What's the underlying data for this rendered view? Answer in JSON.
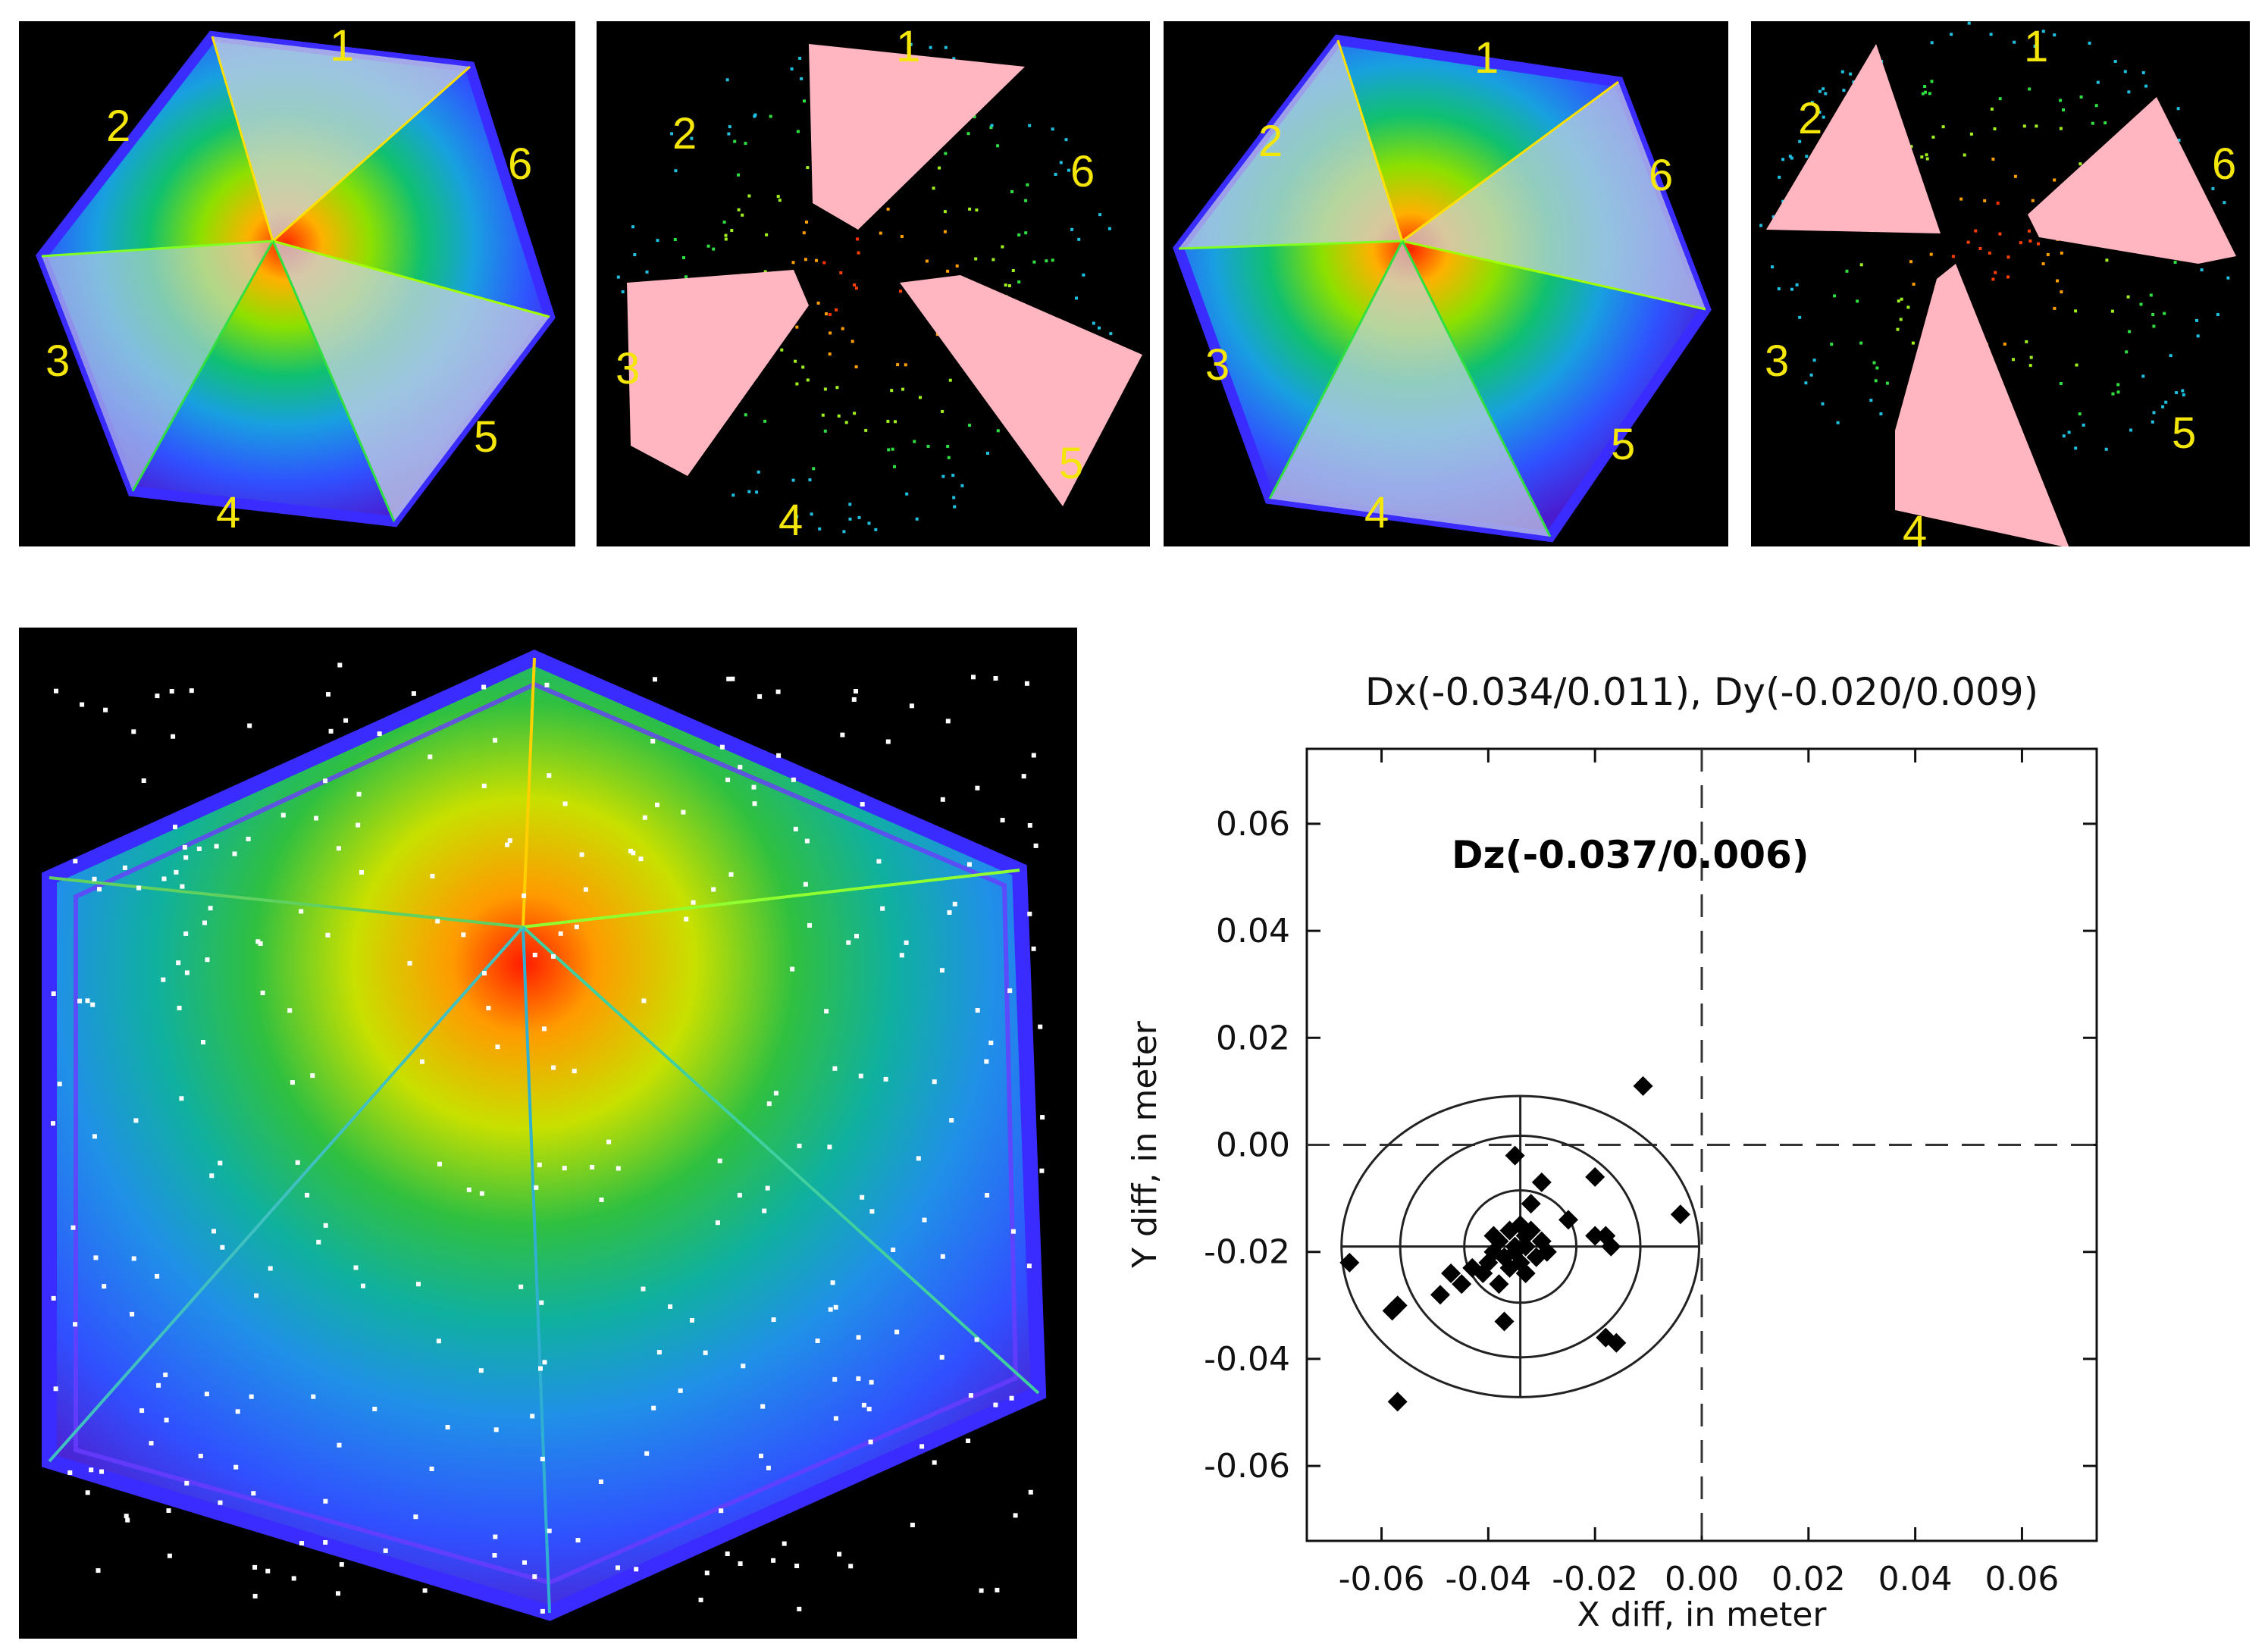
{
  "panels": {
    "a": {
      "face_labels": [
        "1",
        "2",
        "3",
        "4",
        "5",
        "6"
      ]
    },
    "b": {
      "face_labels": [
        "1",
        "2",
        "3",
        "4",
        "5",
        "6"
      ]
    },
    "c": {
      "face_labels": [
        "1",
        "2",
        "3",
        "4",
        "5",
        "6"
      ]
    },
    "d": {
      "face_labels": [
        "1",
        "2",
        "3",
        "4",
        "5",
        "6"
      ]
    }
  },
  "colors": {
    "panel_background": "#000000",
    "face_label": "#f5e60a",
    "checkpoint_patch": "#ffb6c1",
    "selected_face_overlay": "#c8d2e0",
    "frame": "#3a2cff",
    "plot_marker": "#000000"
  },
  "chart_data": {
    "type": "scatter",
    "title": "Dx(-0.034/0.011), Dy(-0.020/0.009)",
    "annotation": "Dz(-0.037/0.006)",
    "xlabel": "X diff, in meter",
    "ylabel": "Y diff, in meter",
    "xlim": [
      -0.074,
      0.074
    ],
    "ylim": [
      -0.074,
      0.074
    ],
    "xticks": [
      "-0.06",
      "-0.04",
      "-0.02",
      "0.00",
      "0.02",
      "0.04",
      "0.06"
    ],
    "yticks": [
      "0.06",
      "0.04",
      "0.02",
      "0.00",
      "-0.02",
      "-0.04",
      "-0.06"
    ],
    "xtick_values": [
      -0.06,
      -0.04,
      -0.02,
      0.0,
      0.02,
      0.04,
      0.06
    ],
    "ytick_values": [
      0.06,
      0.04,
      0.02,
      0.0,
      -0.02,
      -0.04,
      -0.06
    ],
    "marker": "diamond",
    "reference_lines": {
      "x": 0.0,
      "y": 0.0,
      "style": "dashed"
    },
    "target": {
      "center": [
        -0.034,
        -0.019
      ],
      "rings": [
        0.0105,
        0.0225,
        0.0335
      ]
    },
    "points": [
      [
        -0.011,
        0.011
      ],
      [
        -0.035,
        -0.002
      ],
      [
        -0.03,
        -0.007
      ],
      [
        -0.032,
        -0.011
      ],
      [
        -0.02,
        -0.006
      ],
      [
        -0.004,
        -0.013
      ],
      [
        -0.025,
        -0.014
      ],
      [
        -0.02,
        -0.017
      ],
      [
        -0.017,
        -0.019
      ],
      [
        -0.018,
        -0.017
      ],
      [
        -0.034,
        -0.015
      ],
      [
        -0.033,
        -0.017
      ],
      [
        -0.036,
        -0.016
      ],
      [
        -0.038,
        -0.018
      ],
      [
        -0.035,
        -0.02
      ],
      [
        -0.033,
        -0.019
      ],
      [
        -0.037,
        -0.021
      ],
      [
        -0.039,
        -0.02
      ],
      [
        -0.031,
        -0.021
      ],
      [
        -0.034,
        -0.022
      ],
      [
        -0.036,
        -0.023
      ],
      [
        -0.04,
        -0.022
      ],
      [
        -0.03,
        -0.018
      ],
      [
        -0.041,
        -0.024
      ],
      [
        -0.043,
        -0.023
      ],
      [
        -0.045,
        -0.026
      ],
      [
        -0.038,
        -0.026
      ],
      [
        -0.033,
        -0.024
      ],
      [
        -0.035,
        -0.019
      ],
      [
        -0.032,
        -0.016
      ],
      [
        -0.029,
        -0.02
      ],
      [
        -0.039,
        -0.017
      ],
      [
        -0.047,
        -0.024
      ],
      [
        -0.049,
        -0.028
      ],
      [
        -0.037,
        -0.033
      ],
      [
        -0.066,
        -0.022
      ],
      [
        -0.057,
        -0.03
      ],
      [
        -0.058,
        -0.031
      ],
      [
        -0.057,
        -0.048
      ],
      [
        -0.018,
        -0.036
      ],
      [
        -0.016,
        -0.037
      ]
    ]
  }
}
